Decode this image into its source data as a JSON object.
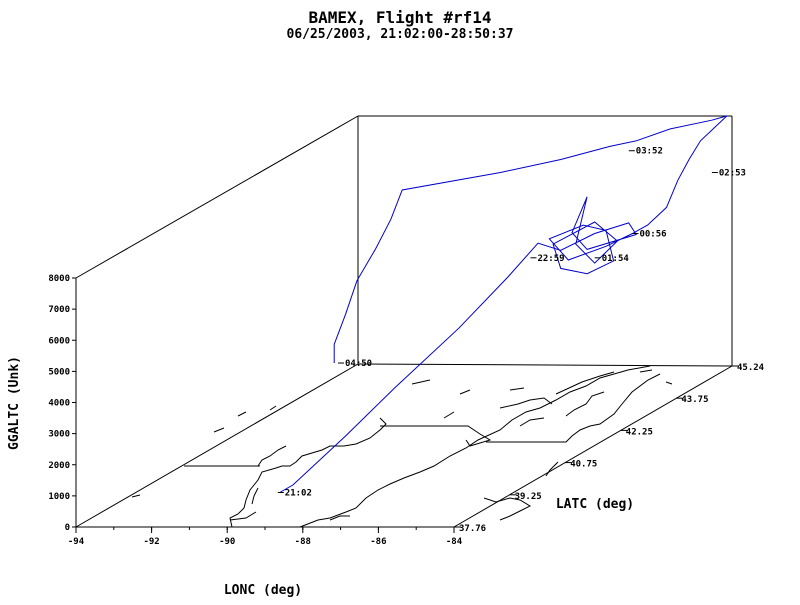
{
  "title": "BAMEX, Flight #rf14",
  "subtitle": "06/25/2003, 21:02:00-28:50:37",
  "chart_data": {
    "type": "line",
    "projection": "3d-oblique",
    "xlabel": "LONC (deg)",
    "ylabel": "LATC (deg)",
    "zlabel": "GGALTC (Unk)",
    "xlim": [
      -94,
      -84
    ],
    "ylim": [
      37.76,
      45.24
    ],
    "zlim": [
      0,
      8000
    ],
    "x_ticks": [
      "-94",
      "-92",
      "-90",
      "-88",
      "-86",
      "-84"
    ],
    "y_ticks": [
      "37.76",
      "39.25",
      "40.75",
      "42.25",
      "43.75",
      "45.24"
    ],
    "z_ticks": [
      "0",
      "1000",
      "2000",
      "3000",
      "4000",
      "5000",
      "6000",
      "7000",
      "8000"
    ],
    "line_color": "#0000cc",
    "map_color": "#000000",
    "time_annotations": [
      {
        "label": "21:02",
        "lon": -89.1,
        "lat": 38.2,
        "alt": 800
      },
      {
        "label": "04:50",
        "lon": -90.3,
        "lat": 41.0,
        "alt": 3000
      },
      {
        "label": "22:59",
        "lon": -88.6,
        "lat": 44.4,
        "alt": 4000
      },
      {
        "label": "00:56",
        "lon": -86.3,
        "lat": 44.8,
        "alt": 4500
      },
      {
        "label": "01:54",
        "lon": -86.9,
        "lat": 44.4,
        "alt": 4000
      },
      {
        "label": "02:53",
        "lon": -84.0,
        "lat": 44.6,
        "alt": 6600
      },
      {
        "label": "03:52",
        "lon": -85.2,
        "lat": 43.6,
        "alt": 8000
      }
    ],
    "flight_track": [
      [
        -89.05,
        38.2,
        800
      ],
      [
        -88.9,
        38.4,
        900
      ],
      [
        -88.9,
        39.8,
        1500
      ],
      [
        -88.8,
        41.0,
        2200
      ],
      [
        -88.7,
        42.6,
        3000
      ],
      [
        -88.6,
        43.8,
        3800
      ],
      [
        -88.5,
        44.5,
        4400
      ],
      [
        -88.0,
        44.6,
        4100
      ],
      [
        -87.3,
        44.8,
        4500
      ],
      [
        -86.6,
        45.0,
        4700
      ],
      [
        -86.3,
        44.9,
        4400
      ],
      [
        -87.2,
        44.5,
        4200
      ],
      [
        -87.8,
        44.7,
        4600
      ],
      [
        -87.9,
        45.2,
        5400
      ],
      [
        -87.6,
        44.6,
        4300
      ],
      [
        -86.8,
        44.3,
        3900
      ],
      [
        -86.5,
        44.6,
        4400
      ],
      [
        -87.4,
        44.9,
        4800
      ],
      [
        -88.2,
        44.6,
        4300
      ],
      [
        -87.6,
        44.2,
        3800
      ],
      [
        -86.8,
        44.1,
        3700
      ],
      [
        -86.4,
        44.4,
        3900
      ],
      [
        -87.0,
        44.8,
        4600
      ],
      [
        -87.7,
        44.9,
        4700
      ],
      [
        -88.4,
        44.7,
        4400
      ],
      [
        -87.5,
        44.3,
        4000
      ],
      [
        -86.7,
        44.5,
        4300
      ],
      [
        -86.3,
        44.8,
        4500
      ],
      [
        -86.0,
        44.9,
        4700
      ],
      [
        -85.6,
        45.0,
        5200
      ],
      [
        -85.4,
        45.1,
        6000
      ],
      [
        -85.2,
        45.2,
        6600
      ],
      [
        -84.9,
        45.2,
        7200
      ],
      [
        -84.2,
        45.2,
        8000
      ],
      [
        -84.4,
        45.0,
        8000
      ],
      [
        -85.1,
        44.6,
        8000
      ],
      [
        -85.6,
        44.2,
        7900
      ],
      [
        -85.9,
        43.8,
        8000
      ],
      [
        -86.6,
        43.2,
        8000
      ],
      [
        -87.6,
        42.6,
        8000
      ],
      [
        -89.4,
        41.8,
        8000
      ],
      [
        -89.5,
        41.6,
        7200
      ],
      [
        -89.7,
        41.4,
        6400
      ],
      [
        -90.0,
        41.2,
        5500
      ],
      [
        -90.2,
        41.1,
        4500
      ],
      [
        -90.4,
        41.0,
        3600
      ],
      [
        -90.4,
        41.0,
        3000
      ]
    ]
  }
}
